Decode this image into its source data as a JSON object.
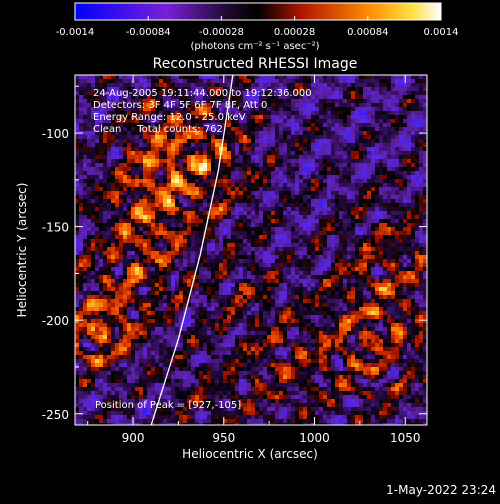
{
  "colorbar": {
    "ticks": [
      "-0.0014",
      "-0.00084",
      "-0.00028",
      "0.00028",
      "0.00084",
      "0.0014"
    ],
    "tick_values": [
      -0.0014,
      -0.00084,
      -0.00028,
      0.00028,
      0.00084,
      0.0014
    ],
    "range": [
      -0.0014,
      0.0014
    ],
    "unit_label": "(photons cm⁻² s⁻¹ asec⁻²)"
  },
  "annotations": {
    "time": "24-Aug-2005 19:11:44.000 to 19:12:36.000",
    "detectors": "Detectors: 3F 4F 5F 6F 7F 8F, Att 0",
    "energy": "Energy Range: 12.0 - 25.0 keV",
    "clean": "Clean     Total counts: 762.",
    "peak": "Position of Peak = [927,-105]"
  },
  "footer": {
    "date": "1-May-2022 23:24"
  },
  "chart_data": {
    "type": "heatmap",
    "title": "Reconstructed RHESSI Image",
    "xlabel": "Heliocentric X (arcsec)",
    "ylabel": "Heliocentric Y (arcsec)",
    "xlim": [
      868,
      1062
    ],
    "ylim": [
      -256,
      -69
    ],
    "xticks": [
      900,
      950,
      1000,
      1050
    ],
    "yticks": [
      -100,
      -150,
      -200,
      -250
    ],
    "colormap": "blue-purple-black-red-orange-yellow-white",
    "limb": [
      [
        910,
        -256
      ],
      [
        925,
        -210
      ],
      [
        937,
        -165
      ],
      [
        947,
        -120
      ],
      [
        955,
        -69
      ]
    ],
    "peak": [
      927,
      -105
    ]
  }
}
